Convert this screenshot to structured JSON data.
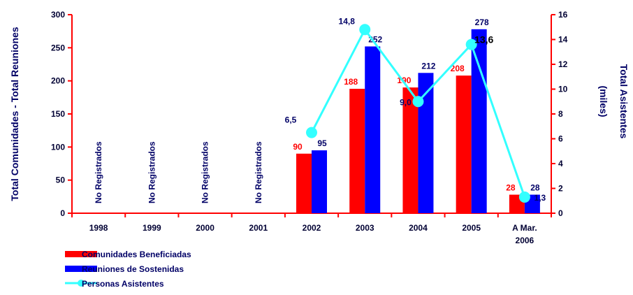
{
  "chart_data": {
    "type": "bar",
    "categories": [
      "1998",
      "1999",
      "2000",
      "2001",
      "2002",
      "2003",
      "2004",
      "2005",
      "A Mar. 2006"
    ],
    "category_lines": [
      [
        "1998"
      ],
      [
        "1999"
      ],
      [
        "2000"
      ],
      [
        "2001"
      ],
      [
        "2002"
      ],
      [
        "2003"
      ],
      [
        "2004"
      ],
      [
        "2005"
      ],
      [
        "A Mar.",
        "2006"
      ]
    ],
    "series": [
      {
        "name": "Comunidades Beneficiadas",
        "kind": "bar",
        "axis": "left",
        "color": "#ff0000",
        "values": [
          null,
          null,
          null,
          null,
          90,
          188,
          190,
          208,
          28
        ],
        "labels": [
          "",
          "",
          "",
          "",
          "90",
          "188",
          "190",
          "208",
          "28"
        ]
      },
      {
        "name": "Reuniones de Sostenidas",
        "kind": "bar",
        "axis": "left",
        "color": "#0000ff",
        "values": [
          null,
          null,
          null,
          null,
          95,
          252,
          212,
          278,
          28
        ],
        "labels": [
          "",
          "",
          "",
          "",
          "95",
          "252",
          "212",
          "278",
          "28"
        ]
      },
      {
        "name": "Personas Asistentes",
        "kind": "line",
        "axis": "right",
        "color": "#33ffff",
        "values": [
          null,
          null,
          null,
          null,
          6.5,
          14.8,
          9.0,
          13.6,
          1.3
        ],
        "labels": [
          "",
          "",
          "",
          "",
          "6,5",
          "14,8",
          "9,0",
          "13,6",
          "1,3"
        ]
      }
    ],
    "not_registered_note": "No Registrados",
    "not_registered_categories": [
      0,
      1,
      2,
      3
    ],
    "ylabel_left": "Total Comunidades - Total Reuniones",
    "ylabel_right_lines": [
      "Total Asistentes",
      "(miles)"
    ],
    "ylim_left": [
      0,
      300
    ],
    "yticks_left": [
      0,
      50,
      100,
      150,
      200,
      250,
      300
    ],
    "ylim_right": [
      0,
      16
    ],
    "yticks_right": [
      0,
      2,
      4,
      6,
      8,
      10,
      12,
      14,
      16
    ],
    "axis_color": "#ff0000",
    "grid": false,
    "legend_position": "bottom-left"
  }
}
